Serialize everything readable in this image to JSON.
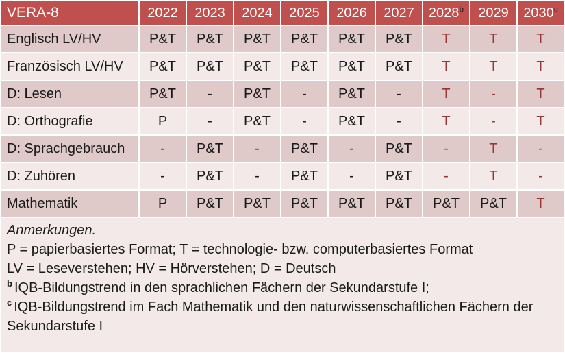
{
  "colors": {
    "header_bg": "#c0504d",
    "band_dark": "#dfc9c9",
    "band_light": "#f2e9e8",
    "red_text": "#953735",
    "header_text": "#ffffff",
    "body_text": "#1a1a1a"
  },
  "table": {
    "title": "VERA-8",
    "columns": [
      {
        "label": "2022",
        "sup": ""
      },
      {
        "label": "2023",
        "sup": ""
      },
      {
        "label": "2024",
        "sup": ""
      },
      {
        "label": "2025",
        "sup": ""
      },
      {
        "label": "2026",
        "sup": ""
      },
      {
        "label": "2027",
        "sup": ""
      },
      {
        "label": "2028",
        "sup": "b"
      },
      {
        "label": "2029",
        "sup": ""
      },
      {
        "label": "2030",
        "sup": "c"
      }
    ],
    "rows": [
      {
        "label": "Englisch LV/HV",
        "cells": [
          {
            "v": "P&T",
            "red": false
          },
          {
            "v": "P&T",
            "red": false
          },
          {
            "v": "P&T",
            "red": false
          },
          {
            "v": "P&T",
            "red": false
          },
          {
            "v": "P&T",
            "red": false
          },
          {
            "v": "P&T",
            "red": false
          },
          {
            "v": "T",
            "red": true
          },
          {
            "v": "T",
            "red": true
          },
          {
            "v": "T",
            "red": true
          }
        ]
      },
      {
        "label": "Französisch LV/HV",
        "cells": [
          {
            "v": "P&T",
            "red": false
          },
          {
            "v": "P&T",
            "red": false
          },
          {
            "v": "P&T",
            "red": false
          },
          {
            "v": "P&T",
            "red": false
          },
          {
            "v": "P&T",
            "red": false
          },
          {
            "v": "P&T",
            "red": false
          },
          {
            "v": "T",
            "red": true
          },
          {
            "v": "T",
            "red": true
          },
          {
            "v": "T",
            "red": true
          }
        ]
      },
      {
        "label": "D: Lesen",
        "cells": [
          {
            "v": "P&T",
            "red": false
          },
          {
            "v": "-",
            "red": false
          },
          {
            "v": "P&T",
            "red": false
          },
          {
            "v": "-",
            "red": false
          },
          {
            "v": "P&T",
            "red": false
          },
          {
            "v": "-",
            "red": false
          },
          {
            "v": "T",
            "red": true
          },
          {
            "v": "-",
            "red": true
          },
          {
            "v": "T",
            "red": true
          }
        ]
      },
      {
        "label": "D: Orthografie",
        "cells": [
          {
            "v": "P",
            "red": false
          },
          {
            "v": "-",
            "red": false
          },
          {
            "v": "P&T",
            "red": false
          },
          {
            "v": "-",
            "red": false
          },
          {
            "v": "P&T",
            "red": false
          },
          {
            "v": "-",
            "red": false
          },
          {
            "v": "T",
            "red": true
          },
          {
            "v": "-",
            "red": true
          },
          {
            "v": "T",
            "red": true
          }
        ]
      },
      {
        "label": "D: Sprachgebrauch",
        "cells": [
          {
            "v": "-",
            "red": false
          },
          {
            "v": "P&T",
            "red": false
          },
          {
            "v": "-",
            "red": false
          },
          {
            "v": "P&T",
            "red": false
          },
          {
            "v": "-",
            "red": false
          },
          {
            "v": "P&T",
            "red": false
          },
          {
            "v": "-",
            "red": true
          },
          {
            "v": "T",
            "red": true
          },
          {
            "v": "-",
            "red": true
          }
        ]
      },
      {
        "label": "D: Zuhören",
        "cells": [
          {
            "v": "-",
            "red": false
          },
          {
            "v": "P&T",
            "red": false
          },
          {
            "v": "-",
            "red": false
          },
          {
            "v": "P&T",
            "red": false
          },
          {
            "v": "-",
            "red": false
          },
          {
            "v": "P&T",
            "red": false
          },
          {
            "v": "-",
            "red": true
          },
          {
            "v": "T",
            "red": true
          },
          {
            "v": "-",
            "red": true
          }
        ]
      },
      {
        "label": "Mathematik",
        "cells": [
          {
            "v": "P",
            "red": false
          },
          {
            "v": "P&T",
            "red": false
          },
          {
            "v": "P&T",
            "red": false
          },
          {
            "v": "P&T",
            "red": false
          },
          {
            "v": "P&T",
            "red": false
          },
          {
            "v": "P&T",
            "red": false
          },
          {
            "v": "P&T",
            "red": false
          },
          {
            "v": "P&T",
            "red": false
          },
          {
            "v": "T",
            "red": true
          }
        ]
      }
    ]
  },
  "notes": {
    "lines": [
      {
        "sup": "",
        "text": "Anmerkungen.",
        "italic": true
      },
      {
        "sup": "",
        "text": "P = papierbasiertes Format; T = technologie- bzw. computerbasiertes Format",
        "italic": false
      },
      {
        "sup": "",
        "text": "LV = Leseverstehen; HV = Hörverstehen; D = Deutsch",
        "italic": false
      },
      {
        "sup": "b",
        "text": "IQB-Bildungstrend in den sprachlichen Fächern der Sekundarstufe I;",
        "italic": false
      },
      {
        "sup": "c",
        "text": "IQB-Bildungstrend im Fach Mathematik und den naturwissenschaftlichen Fächern der Sekundarstufe I",
        "italic": false
      }
    ]
  }
}
